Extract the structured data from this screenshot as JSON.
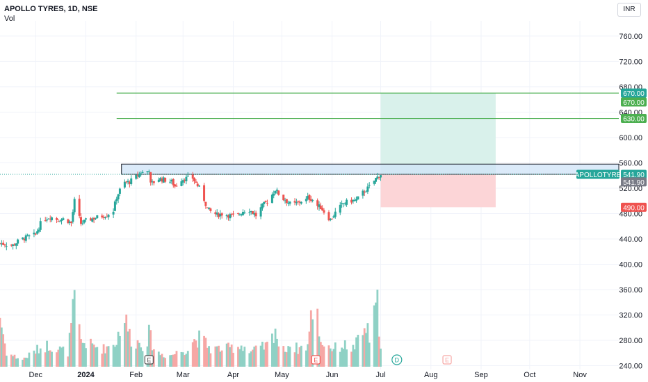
{
  "header": {
    "title": "APOLLO TYRES, 1D, NSE",
    "volume_label": "Vol",
    "currency": "INR"
  },
  "chart_data": {
    "type": "candlestick",
    "symbol": "APOLLOTYRE",
    "currency": "INR",
    "y_ticks": [
      "760.00",
      "720.00",
      "680.00",
      "640.00",
      "600.00",
      "560.00",
      "520.00",
      "480.00",
      "440.00",
      "400.00",
      "360.00",
      "320.00",
      "280.00",
      "240.00"
    ],
    "y_range": [
      234,
      784
    ],
    "x_ticks": [
      "Dec",
      "2024",
      "Feb",
      "Mar",
      "Apr",
      "May",
      "Jun",
      "Jul",
      "Aug",
      "Sep",
      "Oct",
      "Nov"
    ],
    "x_tick_days": [
      22,
      53,
      84,
      113,
      144,
      174,
      205,
      235,
      266,
      297,
      327,
      358
    ],
    "date_range": {
      "first_day": 0,
      "last_candle_day": 235,
      "last_visible_day": 382
    },
    "price_path": [
      [
        0,
        433
      ],
      [
        8,
        430
      ],
      [
        12,
        438
      ],
      [
        16,
        442
      ],
      [
        22,
        447
      ],
      [
        26,
        470
      ],
      [
        31,
        475
      ],
      [
        36,
        470
      ],
      [
        40,
        472
      ],
      [
        44,
        465
      ],
      [
        46,
        500
      ],
      [
        50,
        464
      ],
      [
        54,
        470
      ],
      [
        60,
        474
      ],
      [
        66,
        478
      ],
      [
        70,
        485
      ],
      [
        72,
        506
      ],
      [
        76,
        528
      ],
      [
        80,
        530
      ],
      [
        84,
        538
      ],
      [
        87,
        545
      ],
      [
        90,
        544
      ],
      [
        92,
        550
      ],
      [
        93,
        526
      ],
      [
        98,
        535
      ],
      [
        102,
        533
      ],
      [
        106,
        530
      ],
      [
        108,
        523
      ],
      [
        112,
        534
      ],
      [
        116,
        536
      ],
      [
        118,
        540
      ],
      [
        120,
        532
      ],
      [
        124,
        516
      ],
      [
        128,
        488
      ],
      [
        130,
        483
      ],
      [
        134,
        478
      ],
      [
        138,
        480
      ],
      [
        142,
        477
      ],
      [
        146,
        475
      ],
      [
        150,
        484
      ],
      [
        154,
        486
      ],
      [
        158,
        477
      ],
      [
        162,
        492
      ],
      [
        166,
        502
      ],
      [
        170,
        518
      ],
      [
        174,
        504
      ],
      [
        176,
        502
      ],
      [
        180,
        493
      ],
      [
        184,
        497
      ],
      [
        186,
        500
      ],
      [
        188,
        498
      ],
      [
        190,
        505
      ],
      [
        193,
        502
      ],
      [
        196,
        492
      ],
      [
        198,
        490
      ],
      [
        202,
        476
      ],
      [
        204,
        470
      ],
      [
        208,
        485
      ],
      [
        212,
        496
      ],
      [
        216,
        500
      ],
      [
        220,
        501
      ],
      [
        224,
        513
      ],
      [
        228,
        522
      ],
      [
        232,
        535
      ],
      [
        235,
        541.9
      ]
    ],
    "vol_path": [
      [
        0,
        0.7
      ],
      [
        4,
        0.2
      ],
      [
        8,
        0.15
      ],
      [
        14,
        0.1
      ],
      [
        24,
        0.25
      ],
      [
        30,
        0.3
      ],
      [
        36,
        0.25
      ],
      [
        42,
        0.2
      ],
      [
        46,
        0.9
      ],
      [
        50,
        0.35
      ],
      [
        56,
        0.3
      ],
      [
        64,
        0.25
      ],
      [
        72,
        0.35
      ],
      [
        76,
        0.75
      ],
      [
        82,
        0.3
      ],
      [
        84,
        0.35
      ],
      [
        90,
        0.3
      ],
      [
        92,
        0.45
      ],
      [
        96,
        0.2
      ],
      [
        104,
        0.15
      ],
      [
        116,
        0.25
      ],
      [
        118,
        0.35
      ],
      [
        124,
        0.4
      ],
      [
        130,
        0.25
      ],
      [
        140,
        0.25
      ],
      [
        150,
        0.3
      ],
      [
        154,
        0.2
      ],
      [
        160,
        0.25
      ],
      [
        166,
        0.3
      ],
      [
        168,
        0.4
      ],
      [
        170,
        0.55
      ],
      [
        172,
        0.3
      ],
      [
        174,
        0.2
      ],
      [
        178,
        0.3
      ],
      [
        184,
        0.25
      ],
      [
        190,
        0.3
      ],
      [
        194,
        1.0
      ],
      [
        196,
        0.7
      ],
      [
        198,
        0.35
      ],
      [
        202,
        0.3
      ],
      [
        206,
        0.25
      ],
      [
        212,
        0.3
      ],
      [
        218,
        0.25
      ],
      [
        224,
        0.45
      ],
      [
        226,
        0.55
      ],
      [
        228,
        0.4
      ],
      [
        233,
        0.85
      ],
      [
        235,
        0.35
      ]
    ],
    "current_price": "541.90",
    "current_price_value": 541.9,
    "levels": [
      {
        "value": 670,
        "label": "670.00",
        "color": "#4caf50"
      },
      {
        "value": 630,
        "label": "630.00",
        "color": "#4caf50"
      }
    ],
    "resistance_zone": {
      "from_day": 75,
      "to_day": 382,
      "low": 541.9,
      "high": 558
    },
    "position": {
      "entry": 541.9,
      "target": 670,
      "stop": 490,
      "from_day": 235,
      "to_day": 306,
      "entry_label": "541.90",
      "target_label": "670.00",
      "stop_label": "490.00"
    },
    "event_markers": [
      {
        "day": 92,
        "letter": "E",
        "style": "earnings-past"
      },
      {
        "day": 195,
        "letter": "E",
        "style": "earnings-red"
      },
      {
        "day": 245,
        "letter": "D",
        "style": "dividend"
      },
      {
        "day": 276,
        "letter": "E",
        "style": "earnings-future"
      }
    ],
    "colors": {
      "up": "#26a69a",
      "down": "#ef5350",
      "vol_up": "#8fd1c5",
      "vol_down": "#f6a7a5",
      "grid": "#f0f3fa",
      "target_zone": "#d9f1eb",
      "stop_zone": "#fcd5d7",
      "zone": "#cfe3f7"
    }
  }
}
